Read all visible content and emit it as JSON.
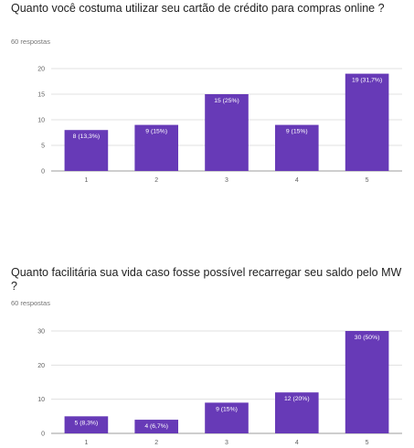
{
  "charts": [
    {
      "question": "Quanto você costuma utilizar seu cartão de crédito para compras online ?",
      "responses": "60 respostas"
    },
    {
      "question": "Quanto facilitária sua vida caso fosse possível recarregar seu saldo pelo MW ?",
      "responses": "60 respostas"
    }
  ],
  "colors": {
    "bar": "#673ab7"
  },
  "chart_data": [
    {
      "type": "bar",
      "categories": [
        "1",
        "2",
        "3",
        "4",
        "5"
      ],
      "values": [
        8,
        9,
        15,
        9,
        19
      ],
      "data_labels": [
        "8 (13,3%)",
        "9 (15%)",
        "15 (25%)",
        "9 (15%)",
        "19 (31,7%)"
      ],
      "ylim": [
        0,
        20
      ],
      "yticks": [
        0,
        5,
        10,
        15,
        20
      ],
      "grid": true
    },
    {
      "type": "bar",
      "categories": [
        "1",
        "2",
        "3",
        "4",
        "5"
      ],
      "values": [
        5,
        4,
        9,
        12,
        30
      ],
      "data_labels": [
        "5 (8,3%)",
        "4 (6,7%)",
        "9 (15%)",
        "12 (20%)",
        "30 (50%)"
      ],
      "ylim": [
        0,
        30
      ],
      "yticks": [
        0,
        10,
        20,
        30
      ],
      "grid": true
    }
  ]
}
